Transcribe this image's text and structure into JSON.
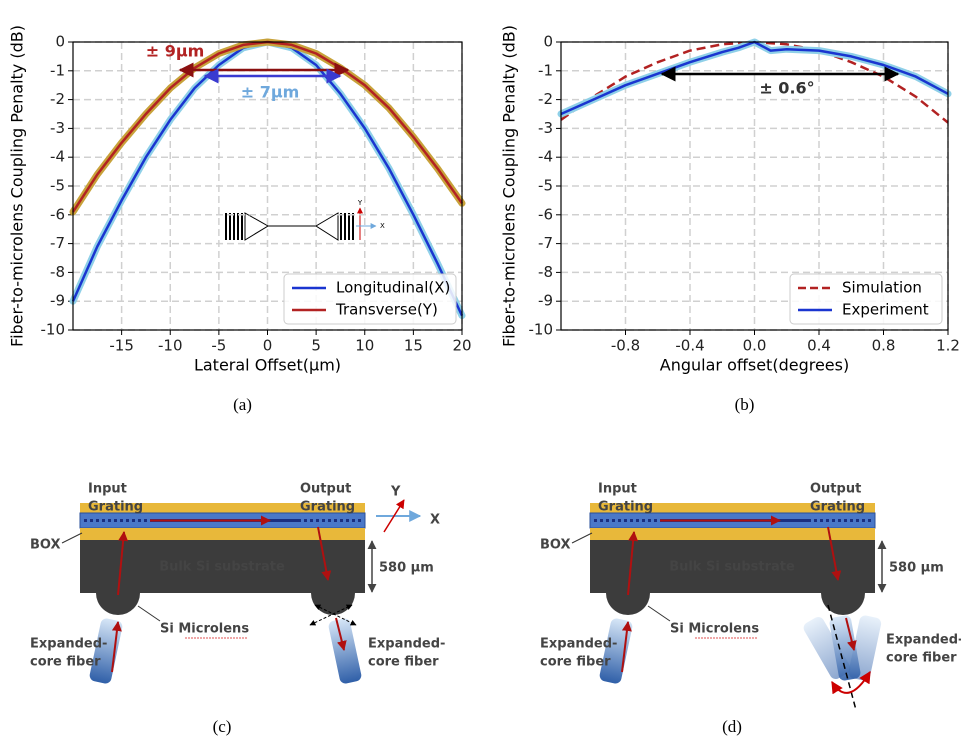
{
  "chart_data": [
    {
      "type": "line",
      "caption": "(a)",
      "ylabel": "Fiber-to-microlens Coupling Penalty (dB)",
      "xlabel": "Lateral Offset(μm)",
      "x": [
        -20,
        -17.5,
        -15,
        -12.5,
        -10,
        -7.5,
        -5,
        -2.5,
        0,
        2.5,
        5,
        7.5,
        10,
        12.5,
        15,
        17.5,
        20
      ],
      "series": [
        {
          "name": "Longitudinal(X)",
          "color": "#1a35d0",
          "halo": "#8fd0e8",
          "values": [
            -9.0,
            -7.1,
            -5.5,
            -4.0,
            -2.7,
            -1.6,
            -0.8,
            -0.2,
            0,
            -0.2,
            -0.8,
            -1.8,
            -3.0,
            -4.4,
            -6.0,
            -7.7,
            -9.5
          ]
        },
        {
          "name": "Transverse(Y)",
          "color": "#b22222",
          "halo": "#c8a23a",
          "values": [
            -5.9,
            -4.6,
            -3.5,
            -2.5,
            -1.6,
            -0.9,
            -0.4,
            -0.1,
            0,
            -0.1,
            -0.4,
            -0.9,
            -1.5,
            -2.3,
            -3.3,
            -4.4,
            -5.6
          ]
        }
      ],
      "xlim": [
        -20,
        20
      ],
      "xticks": [
        -15,
        -10,
        -5,
        0,
        5,
        10,
        15,
        20
      ],
      "ylim": [
        -10,
        0
      ],
      "yticks": [
        0,
        -1,
        -2,
        -3,
        -4,
        -5,
        -6,
        -7,
        -8,
        -9,
        -10
      ],
      "grid": true,
      "legend": "lower right",
      "annotations": [
        {
          "text": "± 9µm",
          "color": "#b22222"
        },
        {
          "text": "± 7µm",
          "color": "#6fa8dc"
        }
      ],
      "inset_labels": [
        "Y",
        "X"
      ]
    },
    {
      "type": "line",
      "caption": "(b)",
      "ylabel": "Fiber-to-microlens Coupling Penalty (dB)",
      "xlabel": "Angular offset(degrees)",
      "series": [
        {
          "name": "Simulation",
          "color": "#b22222",
          "dashed": true,
          "x": [
            -1.2,
            -1.0,
            -0.8,
            -0.6,
            -0.4,
            -0.2,
            0,
            0.2,
            0.4,
            0.6,
            0.8,
            1.0,
            1.2
          ],
          "values": [
            -2.7,
            -1.9,
            -1.2,
            -0.7,
            -0.3,
            -0.08,
            0,
            -0.08,
            -0.3,
            -0.7,
            -1.2,
            -1.9,
            -2.8
          ]
        },
        {
          "name": "Experiment",
          "color": "#1a35d0",
          "halo": "#8fd0e8",
          "x": [
            -1.2,
            -1.0,
            -0.8,
            -0.6,
            -0.4,
            -0.2,
            -0.1,
            0,
            0.1,
            0.2,
            0.4,
            0.6,
            0.8,
            1.0,
            1.2
          ],
          "values": [
            -2.5,
            -2.0,
            -1.5,
            -1.1,
            -0.7,
            -0.35,
            -0.2,
            0,
            -0.3,
            -0.25,
            -0.3,
            -0.5,
            -0.8,
            -1.2,
            -1.8
          ]
        }
      ],
      "xlim": [
        -1.2,
        1.2
      ],
      "xticks": [
        -0.8,
        -0.4,
        {
          "value": 0,
          "label": "0.0"
        },
        0.4,
        0.8,
        1.2
      ],
      "ylim": [
        -10,
        0
      ],
      "yticks": [
        0,
        -1,
        -2,
        -3,
        -4,
        -5,
        -6,
        -7,
        -8,
        -9,
        -10
      ],
      "grid": true,
      "legend": "lower right",
      "annotations": [
        {
          "text": "± 0.6°",
          "color": "#333333"
        }
      ]
    }
  ],
  "diagrams": [
    {
      "caption": "(c)",
      "input_grating": [
        "Input",
        "Grating"
      ],
      "output_grating": [
        "Output",
        "Grating"
      ],
      "box": "BOX",
      "substrate": "Bulk Si substrate",
      "thickness": "580 µm",
      "microlens": "Si Microlens",
      "fiber_left": [
        "Expanded-",
        "core fiber"
      ],
      "fiber_right": [
        "Expanded-",
        "core fiber"
      ],
      "axes": [
        "Y",
        "X"
      ]
    },
    {
      "caption": "(d)",
      "input_grating": [
        "Input",
        "Grating"
      ],
      "output_grating": [
        "Output",
        "Grating"
      ],
      "box": "BOX",
      "substrate": "Bulk Si substrate",
      "thickness": "580 µm",
      "microlens": "Si Microlens",
      "fiber_left": [
        "Expanded-",
        "core fiber"
      ],
      "fiber_right": [
        "Expanded-",
        "core fiber"
      ]
    }
  ]
}
